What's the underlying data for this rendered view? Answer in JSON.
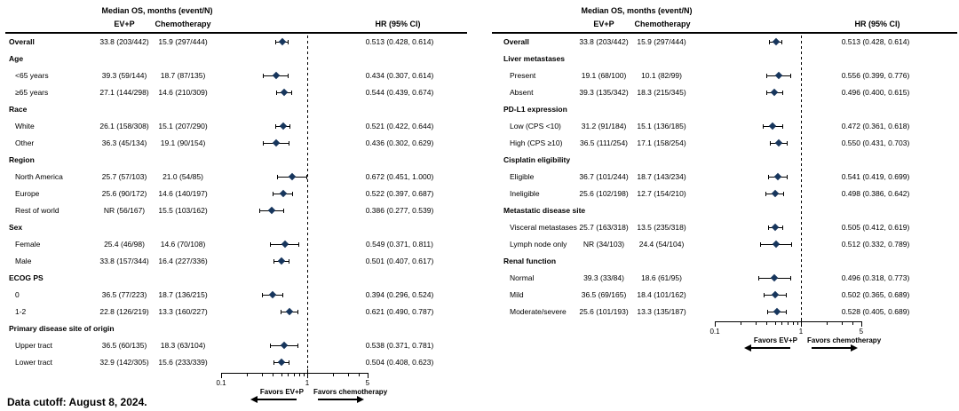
{
  "colors": {
    "marker": "#17365d",
    "line": "#000000"
  },
  "data_cutoff": "Data cutoff: August 8, 2024.",
  "chart_data": [
    {
      "type": "forest",
      "panel": "left",
      "col_headers": {
        "median_os": "Median OS, months (event/N)",
        "evp": "EV+P",
        "chemo": "Chemotherapy",
        "hr": "HR (95% CI)"
      },
      "x_axis": {
        "scale": "log",
        "min": 0.1,
        "max": 5,
        "tick_labels": [
          "0.1",
          "1",
          "5"
        ],
        "ref_line": 1
      },
      "favors": {
        "left": "Favors EV+P",
        "right": "Favors chemotherapy"
      },
      "rows": [
        {
          "label": "Overall",
          "kind": "overall",
          "evp": "33.8 (203/442)",
          "chemo": "15.9 (297/444)",
          "hr_text": "0.513 (0.428, 0.614)",
          "hr": 0.513,
          "lo": 0.428,
          "hi": 0.614
        },
        {
          "label": "Age",
          "kind": "group"
        },
        {
          "label": "<65 years",
          "kind": "item",
          "evp": "39.3 (59/144)",
          "chemo": "18.7 (87/135)",
          "hr_text": "0.434 (0.307, 0.614)",
          "hr": 0.434,
          "lo": 0.307,
          "hi": 0.614
        },
        {
          "label": "≥65 years",
          "kind": "item",
          "evp": "27.1 (144/298)",
          "chemo": "14.6 (210/309)",
          "hr_text": "0.544 (0.439, 0.674)",
          "hr": 0.544,
          "lo": 0.439,
          "hi": 0.674
        },
        {
          "label": "Race",
          "kind": "group"
        },
        {
          "label": "White",
          "kind": "item",
          "evp": "26.1 (158/308)",
          "chemo": "15.1 (207/290)",
          "hr_text": "0.521 (0.422, 0.644)",
          "hr": 0.521,
          "lo": 0.422,
          "hi": 0.644
        },
        {
          "label": "Other",
          "kind": "item",
          "evp": "36.3 (45/134)",
          "chemo": "19.1 (90/154)",
          "hr_text": "0.436 (0.302, 0.629)",
          "hr": 0.436,
          "lo": 0.302,
          "hi": 0.629
        },
        {
          "label": "Region",
          "kind": "group"
        },
        {
          "label": "North America",
          "kind": "item",
          "evp": "25.7 (57/103)",
          "chemo": "21.0 (54/85)",
          "hr_text": "0.672 (0.451, 1.000)",
          "hr": 0.672,
          "lo": 0.451,
          "hi": 1.0
        },
        {
          "label": "Europe",
          "kind": "item",
          "evp": "25.6 (90/172)",
          "chemo": "14.6 (140/197)",
          "hr_text": "0.522 (0.397, 0.687)",
          "hr": 0.522,
          "lo": 0.397,
          "hi": 0.687
        },
        {
          "label": "Rest of world",
          "kind": "item",
          "evp": "NR (56/167)",
          "chemo": "15.5 (103/162)",
          "hr_text": "0.386 (0.277, 0.539)",
          "hr": 0.386,
          "lo": 0.277,
          "hi": 0.539
        },
        {
          "label": "Sex",
          "kind": "group"
        },
        {
          "label": "Female",
          "kind": "item",
          "evp": "25.4 (46/98)",
          "chemo": "14.6 (70/108)",
          "hr_text": "0.549 (0.371, 0.811)",
          "hr": 0.549,
          "lo": 0.371,
          "hi": 0.811
        },
        {
          "label": "Male",
          "kind": "item",
          "evp": "33.8 (157/344)",
          "chemo": "16.4 (227/336)",
          "hr_text": "0.501 (0.407, 0.617)",
          "hr": 0.501,
          "lo": 0.407,
          "hi": 0.617
        },
        {
          "label": "ECOG PS",
          "kind": "group"
        },
        {
          "label": "0",
          "kind": "item",
          "evp": "36.5 (77/223)",
          "chemo": "18.7 (136/215)",
          "hr_text": "0.394 (0.296, 0.524)",
          "hr": 0.394,
          "lo": 0.296,
          "hi": 0.524
        },
        {
          "label": "1-2",
          "kind": "item",
          "evp": "22.8 (126/219)",
          "chemo": "13.3 (160/227)",
          "hr_text": "0.621 (0.490, 0.787)",
          "hr": 0.621,
          "lo": 0.49,
          "hi": 0.787
        },
        {
          "label": "Primary disease site of origin",
          "kind": "group"
        },
        {
          "label": "Upper tract",
          "kind": "item",
          "evp": "36.5 (60/135)",
          "chemo": "18.3 (63/104)",
          "hr_text": "0.538 (0.371, 0.781)",
          "hr": 0.538,
          "lo": 0.371,
          "hi": 0.781
        },
        {
          "label": "Lower tract",
          "kind": "item",
          "evp": "32.9 (142/305)",
          "chemo": "15.6 (233/339)",
          "hr_text": "0.504 (0.408, 0.623)",
          "hr": 0.504,
          "lo": 0.408,
          "hi": 0.623
        }
      ]
    },
    {
      "type": "forest",
      "panel": "right",
      "col_headers": {
        "median_os": "Median OS, months (event/N)",
        "evp": "EV+P",
        "chemo": "Chemotherapy",
        "hr": "HR (95% CI)"
      },
      "x_axis": {
        "scale": "log",
        "min": 0.1,
        "max": 5,
        "tick_labels": [
          "0.1",
          "1",
          "5"
        ],
        "ref_line": 1
      },
      "favors": {
        "left": "Favors EV+P",
        "right": "Favors chemotherapy"
      },
      "rows": [
        {
          "label": "Overall",
          "kind": "overall",
          "evp": "33.8 (203/442)",
          "chemo": "15.9 (297/444)",
          "hr_text": "0.513 (0.428, 0.614)",
          "hr": 0.513,
          "lo": 0.428,
          "hi": 0.614
        },
        {
          "label": "Liver metastases",
          "kind": "group"
        },
        {
          "label": "Present",
          "kind": "item",
          "evp": "19.1 (68/100)",
          "chemo": "10.1 (82/99)",
          "hr_text": "0.556 (0.399, 0.776)",
          "hr": 0.556,
          "lo": 0.399,
          "hi": 0.776
        },
        {
          "label": "Absent",
          "kind": "item",
          "evp": "39.3 (135/342)",
          "chemo": "18.3 (215/345)",
          "hr_text": "0.496 (0.400, 0.615)",
          "hr": 0.496,
          "lo": 0.4,
          "hi": 0.615
        },
        {
          "label": "PD-L1 expression",
          "kind": "group"
        },
        {
          "label": "Low (CPS <10)",
          "kind": "item",
          "evp": "31.2 (91/184)",
          "chemo": "15.1 (136/185)",
          "hr_text": "0.472 (0.361, 0.618)",
          "hr": 0.472,
          "lo": 0.361,
          "hi": 0.618
        },
        {
          "label": "High (CPS ≥10)",
          "kind": "item",
          "evp": "36.5 (111/254)",
          "chemo": "17.1 (158/254)",
          "hr_text": "0.550 (0.431, 0.703)",
          "hr": 0.55,
          "lo": 0.431,
          "hi": 0.703
        },
        {
          "label": "Cisplatin eligibility",
          "kind": "group"
        },
        {
          "label": "Eligible",
          "kind": "item",
          "evp": "36.7 (101/244)",
          "chemo": "18.7 (143/234)",
          "hr_text": "0.541 (0.419, 0.699)",
          "hr": 0.541,
          "lo": 0.419,
          "hi": 0.699
        },
        {
          "label": "Ineligible",
          "kind": "item",
          "evp": "25.6 (102/198)",
          "chemo": "12.7 (154/210)",
          "hr_text": "0.498 (0.386, 0.642)",
          "hr": 0.498,
          "lo": 0.386,
          "hi": 0.642
        },
        {
          "label": "Metastatic disease site",
          "kind": "group"
        },
        {
          "label": "Visceral metastases",
          "kind": "item",
          "evp": "25.7 (163/318)",
          "chemo": "13.5 (235/318)",
          "hr_text": "0.505 (0.412, 0.619)",
          "hr": 0.505,
          "lo": 0.412,
          "hi": 0.619
        },
        {
          "label": "Lymph node only",
          "kind": "item",
          "evp": "NR (34/103)",
          "chemo": "24.4 (54/104)",
          "hr_text": "0.512 (0.332, 0.789)",
          "hr": 0.512,
          "lo": 0.332,
          "hi": 0.789
        },
        {
          "label": "Renal function",
          "kind": "group"
        },
        {
          "label": "Normal",
          "kind": "item",
          "evp": "39.3 (33/84)",
          "chemo": "18.6 (61/95)",
          "hr_text": "0.496 (0.318, 0.773)",
          "hr": 0.496,
          "lo": 0.318,
          "hi": 0.773
        },
        {
          "label": "Mild",
          "kind": "item",
          "evp": "36.5 (69/165)",
          "chemo": "18.4 (101/162)",
          "hr_text": "0.502 (0.365, 0.689)",
          "hr": 0.502,
          "lo": 0.365,
          "hi": 0.689
        },
        {
          "label": "Moderate/severe",
          "kind": "item",
          "evp": "25.6 (101/193)",
          "chemo": "13.3 (135/187)",
          "hr_text": "0.528 (0.405, 0.689)",
          "hr": 0.528,
          "lo": 0.405,
          "hi": 0.689
        }
      ]
    }
  ]
}
